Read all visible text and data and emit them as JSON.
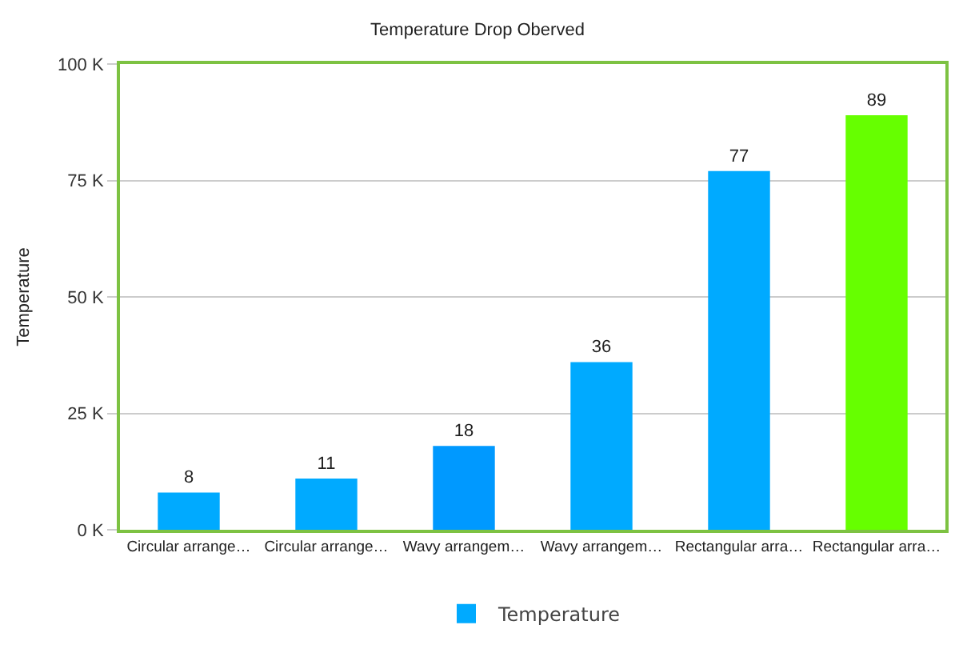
{
  "chart_data": {
    "type": "bar",
    "title": "Temperature Drop Oberved",
    "ylabel": "Temperature",
    "categories": [
      "Circular arrange…",
      "Circular arrange…",
      "Wavy arrangem…",
      "Wavy arrangem…",
      "Rectangular arra…",
      "Rectangular arra…"
    ],
    "series": [
      {
        "name": "Temperature",
        "values": [
          8,
          11,
          18,
          36,
          77,
          89
        ],
        "colors": [
          "#00aaff",
          "#00aaff",
          "#0099ff",
          "#00aaff",
          "#00aaff",
          "#66ff00"
        ]
      }
    ],
    "ylim": [
      0,
      100
    ],
    "yticks": [
      {
        "value": 0,
        "label": "0 K"
      },
      {
        "value": 25,
        "label": "25 K"
      },
      {
        "value": 50,
        "label": "50 K"
      },
      {
        "value": 75,
        "label": "75 K"
      },
      {
        "value": 100,
        "label": "100 K"
      }
    ],
    "grid": "y",
    "legend": "bottom",
    "data_labels": true
  }
}
